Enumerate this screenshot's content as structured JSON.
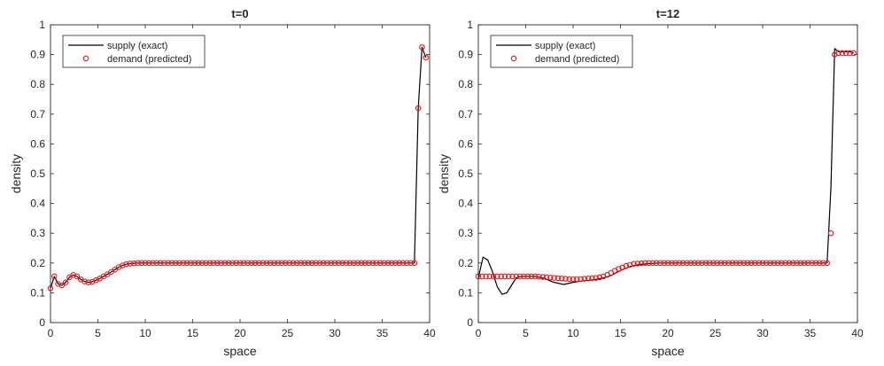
{
  "chart_data": [
    {
      "type": "line",
      "title": "t=0",
      "xlabel": "space",
      "ylabel": "density",
      "xlim": [
        0,
        40
      ],
      "ylim": [
        0,
        1
      ],
      "xticks": [
        "0",
        "5",
        "10",
        "15",
        "20",
        "25",
        "30",
        "35",
        "40"
      ],
      "yticks": [
        "0",
        "0.1",
        "0.2",
        "0.3",
        "0.4",
        "0.5",
        "0.6",
        "0.7",
        "0.8",
        "0.9",
        "1"
      ],
      "grid": false,
      "legend_position": "top-left",
      "series": [
        {
          "name": "supply (exact)",
          "style": "line",
          "color": "#000000",
          "x": [
            0,
            0.4,
            0.8,
            1.2,
            1.6,
            2.0,
            2.4,
            2.8,
            3.2,
            3.6,
            4.0,
            4.4,
            4.8,
            5.2,
            5.6,
            6.0,
            6.4,
            6.8,
            7.2,
            7.6,
            8.0,
            8.4,
            8.8,
            9.2,
            9.6,
            10.0,
            38.4,
            38.8,
            39.2,
            39.6
          ],
          "y": [
            0.115,
            0.155,
            0.13,
            0.125,
            0.135,
            0.152,
            0.16,
            0.155,
            0.145,
            0.138,
            0.135,
            0.137,
            0.142,
            0.148,
            0.155,
            0.162,
            0.17,
            0.178,
            0.186,
            0.192,
            0.196,
            0.198,
            0.199,
            0.2,
            0.2,
            0.2,
            0.2,
            0.72,
            0.925,
            0.89
          ]
        },
        {
          "name": "demand (predicted)",
          "style": "markers",
          "color": "#e8181c",
          "x": [
            0,
            0.4,
            0.8,
            1.2,
            1.6,
            2.0,
            2.4,
            2.8,
            3.2,
            3.6,
            4.0,
            4.4,
            4.8,
            5.2,
            5.6,
            6.0,
            6.4,
            6.8,
            7.2,
            7.6,
            8.0,
            8.4,
            8.8,
            9.2,
            9.6,
            10.0,
            10.4,
            10.8,
            11.2,
            11.6,
            12.0,
            12.4,
            12.8,
            13.2,
            13.6,
            14.0,
            14.4,
            14.8,
            15.2,
            15.6,
            16.0,
            16.4,
            16.8,
            17.2,
            17.6,
            18.0,
            18.4,
            18.8,
            19.2,
            19.6,
            20.0,
            20.4,
            20.8,
            21.2,
            21.6,
            22.0,
            22.4,
            22.8,
            23.2,
            23.6,
            24.0,
            24.4,
            24.8,
            25.2,
            25.6,
            26.0,
            26.4,
            26.8,
            27.2,
            27.6,
            28.0,
            28.4,
            28.8,
            29.2,
            29.6,
            30.0,
            30.4,
            30.8,
            31.2,
            31.6,
            32.0,
            32.4,
            32.8,
            33.2,
            33.6,
            34.0,
            34.4,
            34.8,
            35.2,
            35.6,
            36.0,
            36.4,
            36.8,
            37.2,
            37.6,
            38.0,
            38.4,
            38.8,
            39.2,
            39.6
          ],
          "y": [
            0.115,
            0.155,
            0.13,
            0.125,
            0.135,
            0.152,
            0.16,
            0.155,
            0.145,
            0.138,
            0.135,
            0.137,
            0.142,
            0.148,
            0.155,
            0.162,
            0.17,
            0.178,
            0.186,
            0.192,
            0.196,
            0.198,
            0.199,
            0.2,
            0.2,
            0.2,
            0.2,
            0.2,
            0.2,
            0.2,
            0.2,
            0.2,
            0.2,
            0.2,
            0.2,
            0.2,
            0.2,
            0.2,
            0.2,
            0.2,
            0.2,
            0.2,
            0.2,
            0.2,
            0.2,
            0.2,
            0.2,
            0.2,
            0.2,
            0.2,
            0.2,
            0.2,
            0.2,
            0.2,
            0.2,
            0.2,
            0.2,
            0.2,
            0.2,
            0.2,
            0.2,
            0.2,
            0.2,
            0.2,
            0.2,
            0.2,
            0.2,
            0.2,
            0.2,
            0.2,
            0.2,
            0.2,
            0.2,
            0.2,
            0.2,
            0.2,
            0.2,
            0.2,
            0.2,
            0.2,
            0.2,
            0.2,
            0.2,
            0.2,
            0.2,
            0.2,
            0.2,
            0.2,
            0.2,
            0.2,
            0.2,
            0.2,
            0.2,
            0.2,
            0.2,
            0.2,
            0.2,
            0.72,
            0.925,
            0.89
          ]
        }
      ]
    },
    {
      "type": "line",
      "title": "t=12",
      "xlabel": "space",
      "ylabel": "density",
      "xlim": [
        0,
        40
      ],
      "ylim": [
        0,
        1
      ],
      "xticks": [
        "0",
        "5",
        "10",
        "15",
        "20",
        "25",
        "30",
        "35",
        "40"
      ],
      "yticks": [
        "0",
        "0.1",
        "0.2",
        "0.3",
        "0.4",
        "0.5",
        "0.6",
        "0.7",
        "0.8",
        "0.9",
        "1"
      ],
      "grid": false,
      "legend_position": "top-left",
      "series": [
        {
          "name": "supply (exact)",
          "style": "line",
          "color": "#000000",
          "x": [
            0,
            0.5,
            1.0,
            1.5,
            2.0,
            2.5,
            3.0,
            3.5,
            4.0,
            4.5,
            5.0,
            6.0,
            7.0,
            8.0,
            9.0,
            10.0,
            11.0,
            12.0,
            13.0,
            14.0,
            15.0,
            16.0,
            17.0,
            18.0,
            19.0,
            20.0,
            36.8,
            37.2,
            37.6,
            38.0,
            38.4,
            38.8,
            39.2,
            39.6
          ],
          "y": [
            0.15,
            0.22,
            0.21,
            0.17,
            0.12,
            0.095,
            0.1,
            0.125,
            0.15,
            0.155,
            0.155,
            0.155,
            0.148,
            0.135,
            0.128,
            0.135,
            0.14,
            0.143,
            0.148,
            0.158,
            0.175,
            0.188,
            0.195,
            0.198,
            0.2,
            0.2,
            0.2,
            0.45,
            0.92,
            0.91,
            0.91,
            0.91,
            0.91,
            0.905
          ]
        },
        {
          "name": "demand (predicted)",
          "style": "markers",
          "color": "#e8181c",
          "x": [
            0,
            0.4,
            0.8,
            1.2,
            1.6,
            2.0,
            2.4,
            2.8,
            3.2,
            3.6,
            4.0,
            4.4,
            4.8,
            5.2,
            5.6,
            6.0,
            6.4,
            6.8,
            7.2,
            7.6,
            8.0,
            8.4,
            8.8,
            9.2,
            9.6,
            10.0,
            10.4,
            10.8,
            11.2,
            11.6,
            12.0,
            12.4,
            12.8,
            13.2,
            13.6,
            14.0,
            14.4,
            14.8,
            15.2,
            15.6,
            16.0,
            16.4,
            16.8,
            17.2,
            17.6,
            18.0,
            18.4,
            18.8,
            19.2,
            19.6,
            20.0,
            20.4,
            20.8,
            21.2,
            21.6,
            22.0,
            22.4,
            22.8,
            23.2,
            23.6,
            24.0,
            24.4,
            24.8,
            25.2,
            25.6,
            26.0,
            26.4,
            26.8,
            27.2,
            27.6,
            28.0,
            28.4,
            28.8,
            29.2,
            29.6,
            30.0,
            30.4,
            30.8,
            31.2,
            31.6,
            32.0,
            32.4,
            32.8,
            33.2,
            33.6,
            34.0,
            34.4,
            34.8,
            35.2,
            35.6,
            36.0,
            36.4,
            36.8,
            37.2,
            37.6,
            38.0,
            38.4,
            38.8,
            39.2,
            39.6
          ],
          "y": [
            0.155,
            0.155,
            0.155,
            0.155,
            0.155,
            0.155,
            0.155,
            0.155,
            0.155,
            0.155,
            0.155,
            0.155,
            0.155,
            0.155,
            0.155,
            0.155,
            0.154,
            0.153,
            0.152,
            0.151,
            0.15,
            0.149,
            0.148,
            0.147,
            0.146,
            0.146,
            0.146,
            0.146,
            0.147,
            0.148,
            0.149,
            0.15,
            0.152,
            0.155,
            0.16,
            0.167,
            0.174,
            0.18,
            0.185,
            0.19,
            0.194,
            0.197,
            0.198,
            0.199,
            0.2,
            0.2,
            0.2,
            0.2,
            0.2,
            0.2,
            0.2,
            0.2,
            0.2,
            0.2,
            0.2,
            0.2,
            0.2,
            0.2,
            0.2,
            0.2,
            0.2,
            0.2,
            0.2,
            0.2,
            0.2,
            0.2,
            0.2,
            0.2,
            0.2,
            0.2,
            0.2,
            0.2,
            0.2,
            0.2,
            0.2,
            0.2,
            0.2,
            0.2,
            0.2,
            0.2,
            0.2,
            0.2,
            0.2,
            0.2,
            0.2,
            0.2,
            0.2,
            0.2,
            0.2,
            0.2,
            0.2,
            0.2,
            0.2,
            0.3,
            0.9,
            0.905,
            0.905,
            0.905,
            0.905,
            0.905
          ]
        }
      ]
    }
  ]
}
